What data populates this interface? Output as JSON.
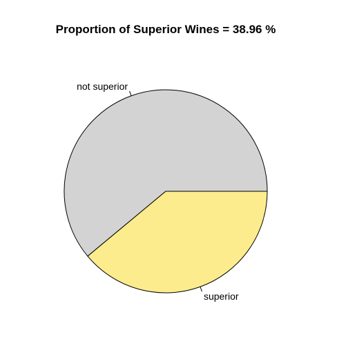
{
  "chart_data": {
    "type": "pie",
    "title": "Proportion of Superior Wines =  38.96 %",
    "categories": [
      "not superior",
      "superior"
    ],
    "values": [
      61.04,
      38.96
    ],
    "colors": [
      "#d3d3d3",
      "#fcec8d"
    ],
    "start_angle_deg": 0,
    "direction": "counterclockwise",
    "border_color": "#000000",
    "legend": "none"
  }
}
